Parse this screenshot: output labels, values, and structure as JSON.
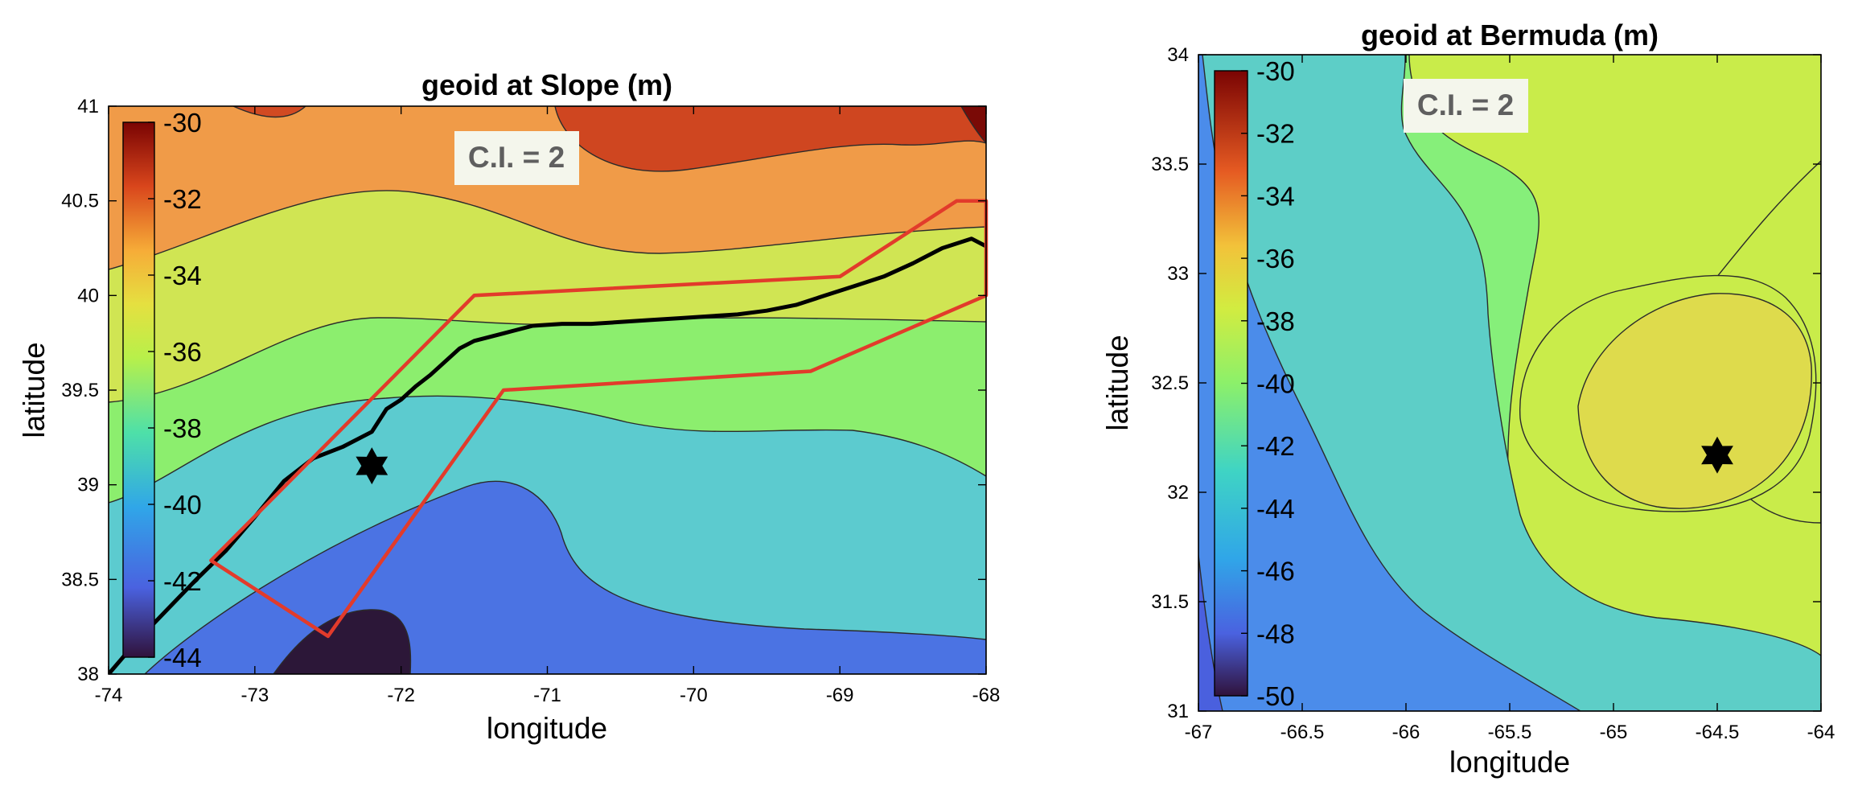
{
  "chart_data": [
    {
      "type": "contour",
      "title": "geoid at Slope (m)",
      "xlabel": "longitude",
      "ylabel": "latitude",
      "xlim": [
        -74,
        -68
      ],
      "ylim": [
        38,
        41
      ],
      "xticks": [
        -74,
        -73,
        -72,
        -71,
        -70,
        -69,
        -68
      ],
      "yticks": [
        38,
        38.5,
        39,
        39.5,
        40,
        40.5,
        41
      ],
      "contour_interval_label": "C.I. = 2",
      "colorbar": {
        "min": -44,
        "max": -30,
        "ticks": [
          -30,
          -32,
          -34,
          -36,
          -38,
          -40,
          -42,
          -44
        ]
      },
      "contour_levels": [
        -44,
        -42,
        -40,
        -38,
        -36,
        -34,
        -32,
        -30
      ],
      "marker": {
        "shape": "star",
        "x": -72.2,
        "y": 39.1
      },
      "black_track": [
        [
          -74.0,
          38.0
        ],
        [
          -73.8,
          38.18
        ],
        [
          -73.6,
          38.34
        ],
        [
          -73.4,
          38.5
        ],
        [
          -73.2,
          38.65
        ],
        [
          -73.0,
          38.83
        ],
        [
          -72.8,
          39.02
        ],
        [
          -72.6,
          39.14
        ],
        [
          -72.4,
          39.2
        ],
        [
          -72.2,
          39.28
        ],
        [
          -72.1,
          39.4
        ],
        [
          -72.0,
          39.45
        ],
        [
          -71.9,
          39.52
        ],
        [
          -71.8,
          39.58
        ],
        [
          -71.7,
          39.65
        ],
        [
          -71.6,
          39.72
        ],
        [
          -71.5,
          39.76
        ],
        [
          -71.3,
          39.8
        ],
        [
          -71.1,
          39.84
        ],
        [
          -70.9,
          39.85
        ],
        [
          -70.7,
          39.85
        ],
        [
          -70.5,
          39.86
        ],
        [
          -70.3,
          39.87
        ],
        [
          -70.1,
          39.88
        ],
        [
          -69.9,
          39.89
        ],
        [
          -69.7,
          39.9
        ],
        [
          -69.5,
          39.92
        ],
        [
          -69.3,
          39.95
        ],
        [
          -69.1,
          40.0
        ],
        [
          -68.9,
          40.05
        ],
        [
          -68.7,
          40.1
        ],
        [
          -68.5,
          40.17
        ],
        [
          -68.3,
          40.25
        ],
        [
          -68.1,
          40.3
        ],
        [
          -68.0,
          40.26
        ]
      ],
      "red_polygon": [
        [
          -73.3,
          38.6
        ],
        [
          -72.5,
          38.2
        ],
        [
          -71.3,
          39.5
        ],
        [
          -69.2,
          39.6
        ],
        [
          -68.0,
          40.0
        ],
        [
          -68.0,
          40.5
        ],
        [
          -68.2,
          40.5
        ],
        [
          -69.0,
          40.1
        ],
        [
          -71.5,
          40.0
        ],
        [
          -73.3,
          38.6
        ]
      ],
      "colors": {
        "polygon": "#e23b2b",
        "track": "#000000"
      }
    },
    {
      "type": "contour",
      "title": "geoid at Bermuda (m)",
      "xlabel": "longitude",
      "ylabel": "latitude",
      "xlim": [
        -67,
        -64
      ],
      "ylim": [
        31,
        34
      ],
      "xticks": [
        -67,
        -66.5,
        -66,
        -65.5,
        -65,
        -64.5,
        -64
      ],
      "yticks": [
        31,
        31.5,
        32,
        32.5,
        33,
        33.5,
        34
      ],
      "contour_interval_label": "C.I. = 2",
      "colorbar": {
        "min": -50,
        "max": -30,
        "ticks": [
          -30,
          -32,
          -34,
          -36,
          -38,
          -40,
          -42,
          -44,
          -46,
          -48,
          -50
        ]
      },
      "contour_levels": [
        -48,
        -46,
        -44,
        -42,
        -40,
        -38
      ],
      "marker": {
        "shape": "star",
        "x": -64.5,
        "y": 32.17
      }
    }
  ],
  "colors": {
    "background": "#ffffff",
    "ci_box": "#f4f6ec",
    "ci_text": "#5f5f5f",
    "contour_line": "#222222"
  }
}
